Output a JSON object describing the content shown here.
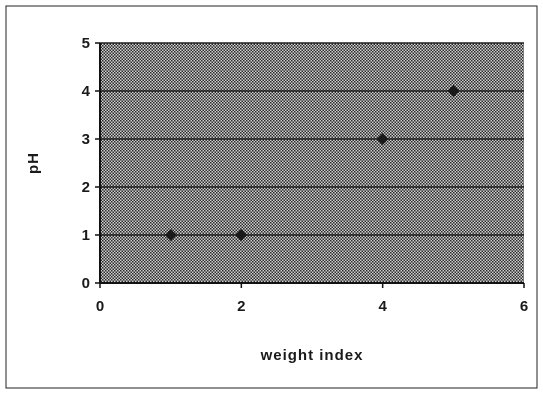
{
  "chart_data": {
    "type": "scatter",
    "title": "",
    "xlabel": "weight index",
    "ylabel": "pH",
    "xlim": [
      0,
      6
    ],
    "ylim": [
      0,
      5
    ],
    "xticks": [
      0,
      2,
      4,
      6
    ],
    "yticks": [
      0,
      1,
      2,
      3,
      4,
      5
    ],
    "grid": true,
    "legend": "none",
    "plot_background": "#b4b4b4",
    "marker_color": "#1a1a1a",
    "series": [
      {
        "x": [
          1,
          2,
          4,
          5
        ],
        "y": [
          1,
          1,
          3,
          4
        ]
      }
    ]
  }
}
